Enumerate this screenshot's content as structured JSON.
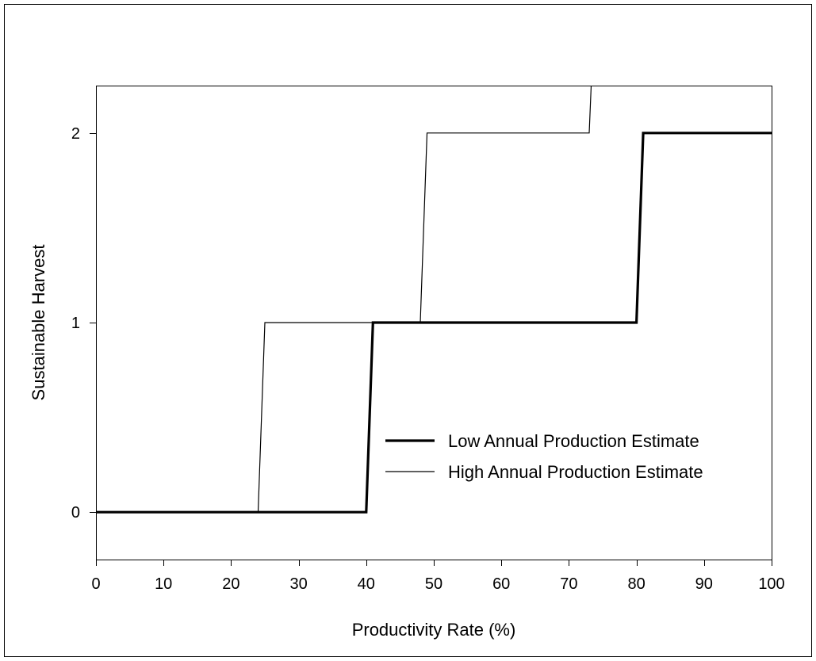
{
  "chart_data": {
    "type": "line",
    "title": "",
    "xlabel": "Productivity Rate (%)",
    "ylabel": "Sustainable Harvest",
    "xlim": [
      0,
      100
    ],
    "ylim": [
      -0.25,
      2.25
    ],
    "x_ticks": [
      0,
      10,
      20,
      30,
      40,
      50,
      60,
      70,
      80,
      90,
      100
    ],
    "x_tick_labels": [
      "0",
      "10",
      "20",
      "30",
      "40",
      "50",
      "60",
      "70",
      "80",
      "90",
      "100"
    ],
    "y_ticks": [
      0,
      1,
      2
    ],
    "y_tick_labels": [
      "0",
      "1",
      "2"
    ],
    "grid": false,
    "legend_position": "lower-right",
    "series": [
      {
        "name": "Low Annual Production Estimate",
        "line_style": "thick",
        "color": "#000000",
        "points": [
          [
            0,
            0
          ],
          [
            40,
            0
          ],
          [
            41,
            1
          ],
          [
            80,
            1
          ],
          [
            81,
            2
          ],
          [
            100,
            2
          ]
        ]
      },
      {
        "name": "High Annual Production Estimate",
        "line_style": "thin",
        "color": "#000000",
        "points": [
          [
            0,
            0
          ],
          [
            24,
            0
          ],
          [
            25,
            1
          ],
          [
            48,
            1
          ],
          [
            49,
            2
          ],
          [
            73,
            2
          ],
          [
            73.3,
            2.25
          ]
        ]
      }
    ]
  }
}
